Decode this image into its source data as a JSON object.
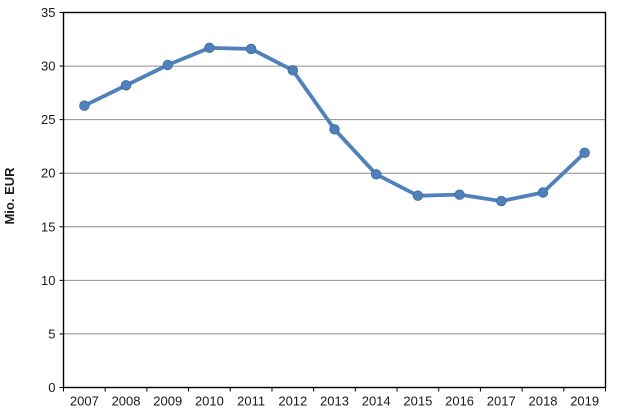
{
  "chart_data": {
    "type": "line",
    "title": "",
    "xlabel": "",
    "ylabel": "Mio. EUR",
    "categories": [
      "2007",
      "2008",
      "2009",
      "2010",
      "2011",
      "2012",
      "2013",
      "2014",
      "2015",
      "2016",
      "2017",
      "2018",
      "2019"
    ],
    "series": [
      {
        "name": "Mio. EUR",
        "values": [
          26.3,
          28.2,
          30.1,
          31.7,
          31.6,
          29.6,
          24.1,
          19.9,
          17.9,
          18.0,
          17.4,
          18.2,
          21.9
        ]
      }
    ],
    "ylim": [
      0,
      35
    ],
    "ytick_step": 5,
    "grid": true,
    "legend_position": "none",
    "colors": {
      "line": "#4F81BD",
      "marker_fill": "#4F81BD",
      "marker_stroke": "#3A6BA5",
      "axis": "#000000",
      "gridline": "#8e8e8e",
      "tick_label": "#1a1a1a",
      "background": "#ffffff"
    }
  }
}
